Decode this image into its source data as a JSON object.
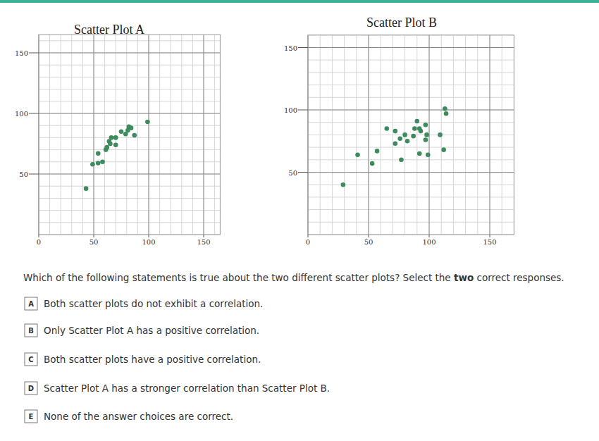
{
  "chart_data": [
    {
      "type": "scatter",
      "title": "Scatter Plot A",
      "x": [
        43,
        49,
        54,
        58,
        54,
        61,
        62,
        65,
        70,
        66,
        70,
        75,
        79,
        81,
        82,
        84,
        87,
        99,
        64
      ],
      "values": [
        38,
        58,
        59,
        60,
        67,
        70,
        72,
        75,
        74,
        80,
        80,
        85,
        83,
        86,
        89,
        88,
        82,
        93,
        77
      ],
      "color": "#3d8b5c",
      "marker": "circle",
      "xlim": [
        0,
        165
      ],
      "ylim": [
        0,
        165
      ],
      "xticks": [
        0,
        50,
        100,
        150
      ],
      "yticks": [
        50,
        100,
        150
      ],
      "grid": true
    },
    {
      "type": "scatter",
      "title": "Scatter Plot B",
      "x": [
        113,
        114,
        90,
        97,
        65,
        72,
        88,
        92,
        93,
        80,
        87,
        98,
        109,
        76,
        82,
        72,
        97,
        112,
        92,
        99,
        77,
        57,
        41,
        53,
        29
      ],
      "values": [
        101,
        97,
        91,
        88,
        85,
        83,
        85,
        85,
        83,
        80,
        79,
        80,
        80,
        77,
        75,
        73,
        76,
        68,
        65,
        64,
        60,
        67,
        64,
        57,
        40
      ],
      "color": "#3d8b5c",
      "marker": "circle",
      "xlim": [
        0,
        170
      ],
      "ylim": [
        0,
        160
      ],
      "xticks": [
        0,
        50,
        100,
        150
      ],
      "yticks": [
        50,
        100,
        150
      ],
      "grid": true
    }
  ],
  "question": {
    "before": "Which of the following statements is true about the two different scatter plots? Select the ",
    "bold": "two",
    "after": " correct responses."
  },
  "options": [
    {
      "letter": "A",
      "text": "Both scatter plots do not exhibit a correlation."
    },
    {
      "letter": "B",
      "text": "Only Scatter Plot A has a positive correlation."
    },
    {
      "letter": "C",
      "text": "Both scatter plots have a positive correlation."
    },
    {
      "letter": "D",
      "text": "Scatter Plot A has a stronger correlation than Scatter Plot B."
    },
    {
      "letter": "E",
      "text": "None of the answer choices are correct."
    }
  ]
}
